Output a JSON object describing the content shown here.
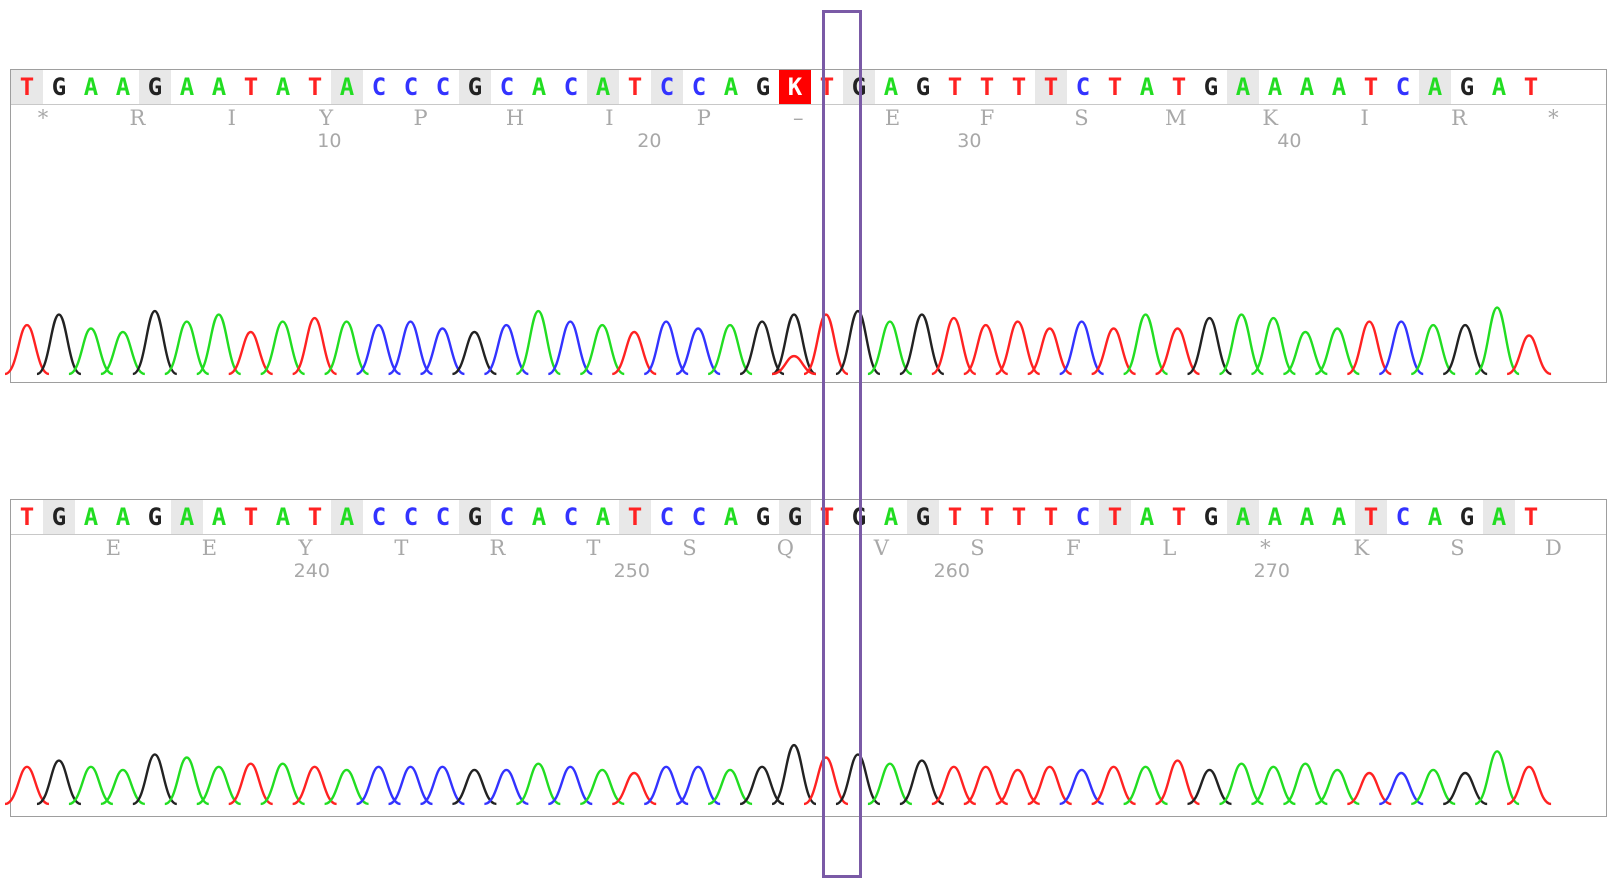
{
  "panels": [
    {
      "sequence": "TGAAGAATATACCCGCACATCCAGKTGAGTTTTCTATGAAAATCAGAT",
      "selected_index": 24,
      "translation": [
        "*",
        "R",
        "I",
        "Y",
        "P",
        "H",
        "I",
        "P",
        "–",
        "E",
        "F",
        "S",
        "M",
        "K",
        "I",
        "R",
        "*"
      ],
      "positions": [
        "10",
        "20",
        "30",
        "40"
      ],
      "peak_heights": [
        0.7,
        0.85,
        0.65,
        0.6,
        0.9,
        0.75,
        0.85,
        0.6,
        0.75,
        0.8,
        0.75,
        0.7,
        0.75,
        0.65,
        0.6,
        0.7,
        0.9,
        0.75,
        0.7,
        0.6,
        0.75,
        0.65,
        0.7,
        0.75,
        0.85,
        0.85,
        0.9,
        0.75,
        0.85,
        0.8,
        0.7,
        0.75,
        0.65,
        0.75,
        0.65,
        0.85,
        0.65,
        0.8,
        0.85,
        0.8,
        0.6,
        0.65,
        0.75,
        0.75,
        0.7,
        0.7,
        0.95,
        0.55
      ]
    },
    {
      "sequence": "TGAAGAATATACCCGCACATCCAGGTGAGTTTTCTATGAAAATCAGAT",
      "selected_index": -1,
      "translation": [
        "E",
        "E",
        "Y",
        "T",
        "R",
        "T",
        "S",
        "Q",
        "V",
        "S",
        "F",
        "L",
        "*",
        "K",
        "S",
        "D"
      ],
      "positions": [
        "240",
        "250",
        "260",
        "270"
      ],
      "peak_heights": [
        0.6,
        0.7,
        0.6,
        0.55,
        0.8,
        0.75,
        0.6,
        0.65,
        0.65,
        0.6,
        0.55,
        0.6,
        0.6,
        0.6,
        0.55,
        0.55,
        0.65,
        0.6,
        0.55,
        0.5,
        0.6,
        0.6,
        0.55,
        0.6,
        0.95,
        0.75,
        0.8,
        0.65,
        0.7,
        0.6,
        0.6,
        0.55,
        0.6,
        0.55,
        0.6,
        0.6,
        0.7,
        0.55,
        0.65,
        0.6,
        0.65,
        0.55,
        0.5,
        0.5,
        0.55,
        0.5,
        0.85,
        0.6
      ]
    }
  ],
  "colors": {
    "A": "#22dd22",
    "C": "#3333ff",
    "G": "#222222",
    "T": "#ff2222",
    "K": "#ffffff"
  }
}
